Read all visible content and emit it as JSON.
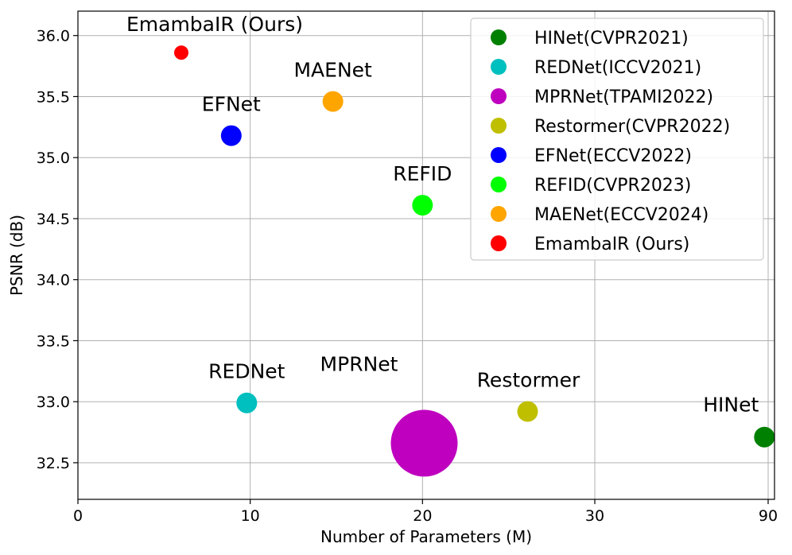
{
  "chart_data": {
    "type": "scatter",
    "xlabel": "Number of Parameters (M)",
    "ylabel": "PSNR (dB)",
    "xlim": [
      0,
      90
    ],
    "ylim": [
      32.2,
      36.2
    ],
    "xticks": [
      0,
      10,
      20,
      30,
      90
    ],
    "xtick_labels": [
      "0",
      "10",
      "20",
      "30",
      "90"
    ],
    "yticks": [
      32.5,
      33.0,
      33.5,
      34.0,
      34.5,
      35.0,
      35.5,
      36.0
    ],
    "ytick_labels": [
      "32.5",
      "33.0",
      "33.5",
      "34.0",
      "34.5",
      "35.0",
      "35.5",
      "36.0"
    ],
    "grid": true,
    "legend_position": "top-right",
    "x_axis_break": {
      "from": 30,
      "to": 90,
      "note": "Last displayed tick jumps from 30 to 90"
    },
    "series": [
      {
        "name": "HINet(CVPR2021)",
        "label": "HINet",
        "x": 88.7,
        "y": 32.71,
        "color": "#008000",
        "size": "small"
      },
      {
        "name": "REDNet(ICCV2021)",
        "label": "REDNet",
        "x": 9.8,
        "y": 32.99,
        "color": "#00bfbf",
        "size": "small"
      },
      {
        "name": "MPRNet(TPAMI2022)",
        "label": "MPRNet",
        "x": 20.1,
        "y": 32.66,
        "color": "#bf00bf",
        "size": "large"
      },
      {
        "name": "Restormer(CVPR2022)",
        "label": "Restormer",
        "x": 26.1,
        "y": 32.92,
        "color": "#bfbf00",
        "size": "small"
      },
      {
        "name": "EFNet(ECCV2022)",
        "label": "EFNet",
        "x": 8.9,
        "y": 35.18,
        "color": "#0000ff",
        "size": "small"
      },
      {
        "name": "REFID(CVPR2023)",
        "label": "REFID",
        "x": 20.0,
        "y": 34.61,
        "color": "#00ff00",
        "size": "small"
      },
      {
        "name": "MAENet(ECCV2024)",
        "label": "MAENet",
        "x": 14.8,
        "y": 35.46,
        "color": "#ffa500",
        "size": "small"
      },
      {
        "name": "EmambaIR (Ours)",
        "label": "EmambaIR (Ours)",
        "x": 6.0,
        "y": 35.86,
        "color": "#ff0000",
        "size": "tiny"
      }
    ]
  }
}
